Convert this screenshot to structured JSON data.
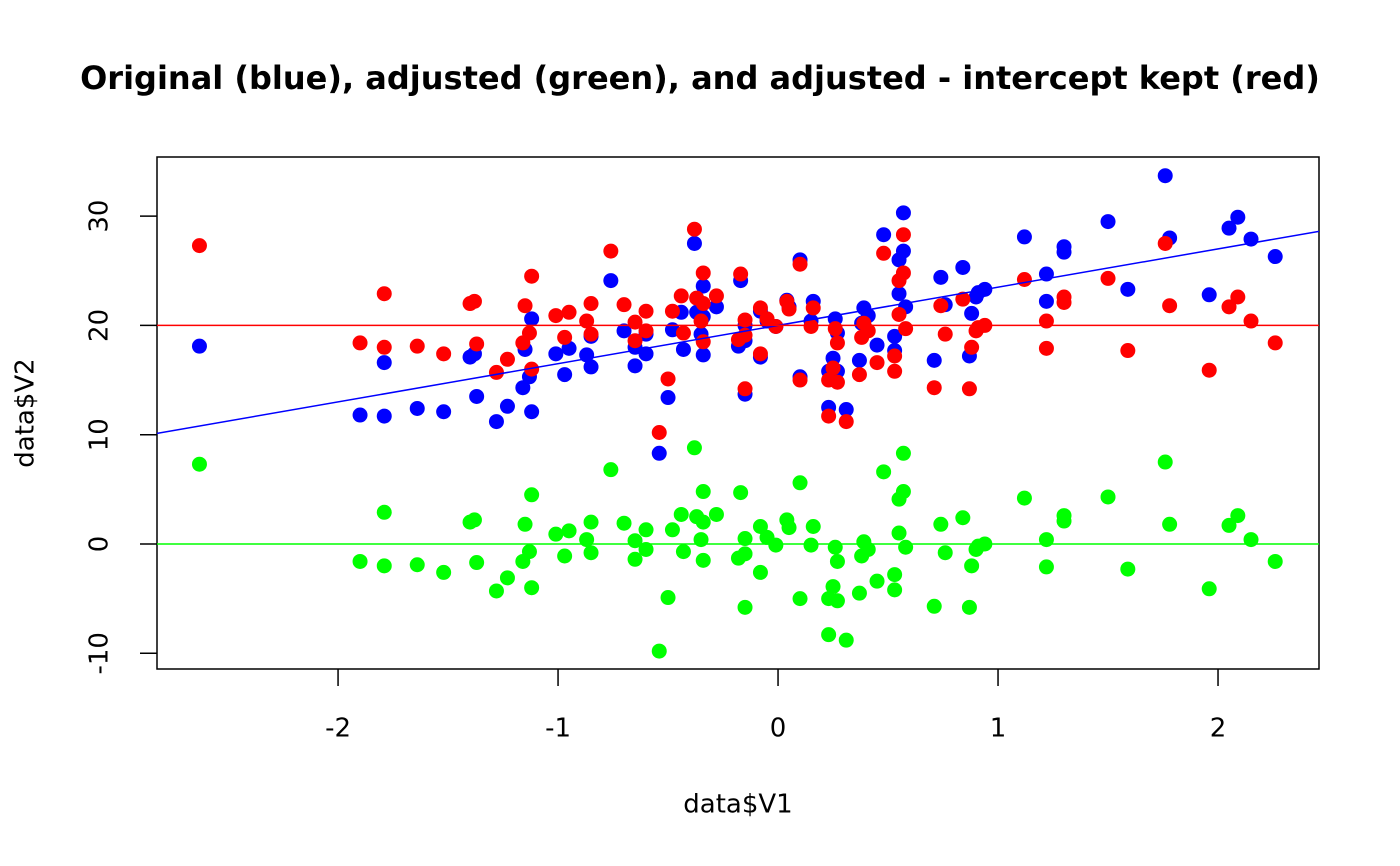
{
  "chart_data": {
    "type": "scatter",
    "title": "Original (blue), adjusted (green), and adjusted - intercept kept (red)",
    "xlabel": "data$V1",
    "ylabel": "data$V2",
    "xlim": [
      -2.823,
      2.459
    ],
    "ylim": [
      -11.44,
      35.41
    ],
    "xticks": [
      -2,
      -1,
      0,
      1,
      2
    ],
    "yticks": [
      -10,
      0,
      10,
      20,
      30
    ],
    "x": [
      -2.63,
      -1.9,
      -1.79,
      -1.79,
      -1.64,
      -1.52,
      -1.4,
      -1.38,
      -1.37,
      -1.28,
      -1.23,
      -1.15,
      -1.16,
      -1.13,
      -1.12,
      -1.12,
      -1.01,
      -0.97,
      -0.95,
      -0.87,
      -0.85,
      -0.85,
      -0.76,
      -0.7,
      -0.65,
      -0.65,
      -0.6,
      -0.6,
      -0.54,
      -0.5,
      -0.48,
      -0.44,
      -0.43,
      -0.38,
      -0.37,
      -0.35,
      -0.34,
      -0.34,
      -0.34,
      -0.28,
      -0.18,
      -0.17,
      -0.15,
      -0.15,
      -0.15,
      -0.08,
      -0.08,
      -0.05,
      -0.01,
      0.04,
      0.05,
      0.1,
      0.1,
      0.15,
      0.16,
      0.23,
      0.23,
      0.25,
      0.26,
      0.27,
      0.27,
      0.31,
      0.37,
      0.38,
      0.39,
      0.41,
      0.45,
      0.48,
      0.53,
      0.53,
      0.55,
      0.55,
      0.57,
      0.57,
      0.58,
      0.71,
      0.74,
      0.76,
      0.84,
      0.87,
      0.88,
      0.9,
      0.91,
      0.94,
      1.12,
      1.22,
      1.22,
      1.3,
      1.3,
      1.5,
      1.59,
      1.76,
      1.78,
      1.96,
      2.05,
      2.09,
      2.15,
      2.26
    ],
    "series": [
      {
        "color": "#0000ff",
        "values": [
          18.1,
          11.8,
          16.6,
          11.7,
          12.4,
          12.1,
          17.1,
          17.4,
          13.5,
          11.2,
          12.6,
          17.8,
          14.3,
          15.3,
          20.6,
          12.1,
          17.4,
          15.5,
          17.9,
          17.3,
          16.2,
          19.0,
          24.1,
          19.5,
          18.0,
          16.3,
          19.2,
          17.4,
          8.3,
          13.4,
          19.6,
          21.2,
          17.8,
          27.5,
          21.2,
          19.2,
          23.6,
          20.8,
          17.3,
          21.7,
          18.1,
          24.1,
          20.0,
          13.7,
          18.6,
          21.3,
          17.1,
          20.4,
          19.9,
          22.3,
          21.7,
          15.3,
          26.0,
          20.4,
          22.2,
          15.8,
          12.5,
          17.0,
          20.6,
          19.3,
          15.8,
          12.3,
          16.8,
          20.2,
          21.6,
          20.9,
          18.2,
          28.3,
          19.0,
          17.7,
          26.0,
          22.9,
          30.3,
          26.8,
          21.7,
          16.8,
          24.4,
          21.9,
          25.3,
          17.2,
          21.1,
          22.6,
          23.0,
          23.3,
          28.1,
          24.7,
          22.2,
          27.2,
          26.7,
          29.5,
          23.3,
          33.7,
          28.0,
          22.8,
          28.9,
          29.9,
          27.9,
          26.3
        ]
      },
      {
        "color": "#00ff00",
        "values": [
          7.3,
          -1.6,
          2.9,
          -2.0,
          -1.9,
          -2.6,
          2.0,
          2.2,
          -1.7,
          -4.3,
          -3.1,
          1.8,
          -1.6,
          -0.7,
          4.5,
          -4.0,
          0.9,
          -1.1,
          1.2,
          0.4,
          -0.8,
          2.0,
          6.8,
          1.9,
          0.3,
          -1.4,
          1.3,
          -0.5,
          -9.8,
          -4.9,
          1.3,
          2.7,
          -0.7,
          8.8,
          2.5,
          0.4,
          4.8,
          2.0,
          -1.5,
          2.7,
          -1.3,
          4.7,
          0.5,
          -5.8,
          -0.9,
          1.6,
          -2.6,
          0.6,
          -0.1,
          2.2,
          1.5,
          -5.0,
          5.6,
          -0.1,
          1.6,
          -5.0,
          -8.3,
          -3.9,
          -0.3,
          -1.6,
          -5.2,
          -8.8,
          -4.5,
          -1.1,
          0.2,
          -0.5,
          -3.4,
          6.6,
          -2.8,
          -4.2,
          4.1,
          1.0,
          8.3,
          4.8,
          -0.3,
          -5.7,
          1.8,
          -0.8,
          2.4,
          -5.8,
          -2.0,
          -0.5,
          -0.2,
          0.0,
          4.2,
          0.4,
          -2.1,
          2.6,
          2.1,
          4.3,
          -2.3,
          7.5,
          1.8,
          -4.1,
          1.7,
          2.6,
          0.4,
          -1.6
        ]
      },
      {
        "color": "#ff0000",
        "values": [
          27.3,
          18.4,
          22.9,
          18.0,
          18.1,
          17.4,
          22.0,
          22.2,
          18.3,
          15.7,
          16.9,
          21.8,
          18.4,
          19.3,
          24.5,
          16.0,
          20.9,
          18.9,
          21.2,
          20.4,
          19.2,
          22.0,
          26.8,
          21.9,
          20.3,
          18.6,
          21.3,
          19.5,
          10.2,
          15.1,
          21.3,
          22.7,
          19.3,
          28.8,
          22.5,
          20.4,
          24.8,
          22.0,
          18.5,
          22.7,
          18.7,
          24.7,
          20.5,
          14.2,
          19.1,
          21.6,
          17.4,
          20.6,
          19.9,
          22.2,
          21.5,
          15.0,
          25.6,
          19.9,
          21.6,
          15.0,
          11.7,
          16.1,
          19.7,
          18.4,
          14.8,
          11.2,
          15.5,
          18.9,
          20.2,
          19.5,
          16.6,
          26.6,
          17.2,
          15.8,
          24.1,
          21.0,
          28.3,
          24.8,
          19.7,
          14.3,
          21.8,
          19.2,
          22.4,
          14.2,
          18.0,
          19.5,
          19.8,
          20.0,
          24.2,
          20.4,
          17.9,
          22.6,
          22.1,
          24.3,
          17.7,
          27.5,
          21.8,
          15.9,
          21.7,
          22.6,
          20.4,
          18.4
        ]
      }
    ],
    "lines": [
      {
        "color": "#0000ff",
        "intercept": 20,
        "slope": 3.5
      },
      {
        "color": "#ff0000",
        "intercept": 20,
        "slope": 0
      },
      {
        "color": "#00ff00",
        "intercept": 0,
        "slope": 0
      }
    ]
  }
}
